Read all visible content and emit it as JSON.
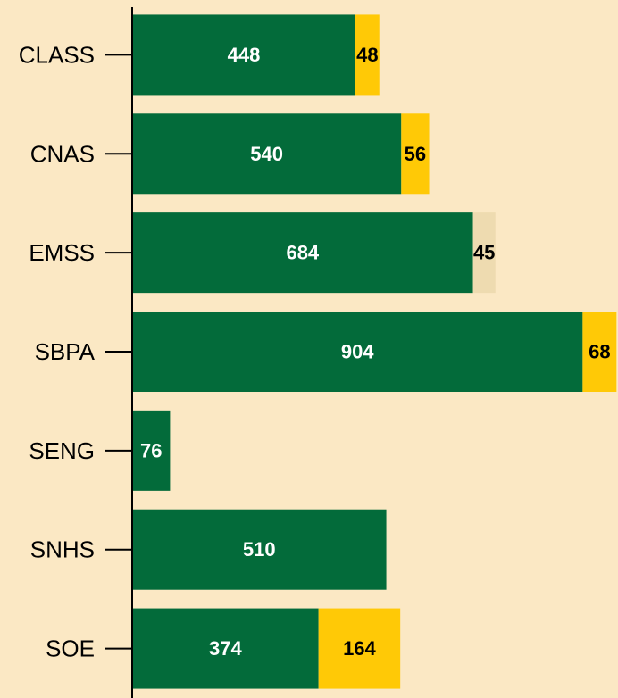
{
  "chart_data": {
    "type": "stacked-bar-horizontal",
    "categories": [
      "CLASS",
      "CNAS",
      "EMSS",
      "SBPA",
      "SENG",
      "SNHS",
      "SOE"
    ],
    "series": [
      {
        "color": "#036b3a",
        "values": [
          448,
          540,
          684,
          904,
          76,
          510,
          374
        ]
      },
      {
        "color": "#ffc906",
        "colors": [
          "#ffc906",
          "#ffc906",
          "#eedbb0",
          "#ffc906",
          "#ffc906",
          "#ffc906",
          "#ffc906"
        ],
        "values": [
          48,
          56,
          45,
          68,
          null,
          null,
          164
        ]
      }
    ],
    "xlim": [
      0,
      975
    ]
  }
}
